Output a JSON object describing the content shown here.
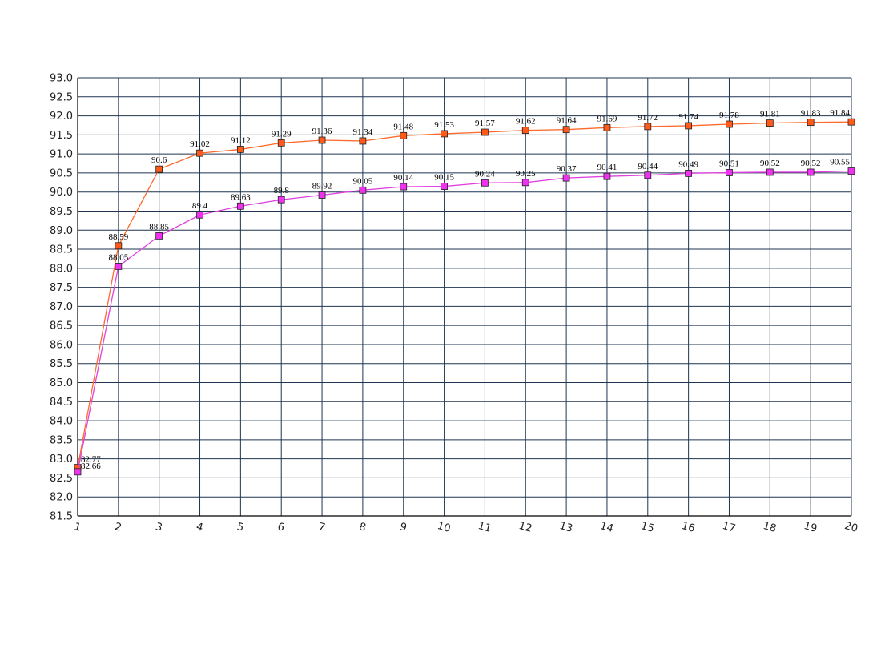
{
  "chart_data": {
    "type": "line",
    "title": "",
    "xlabel": "",
    "ylabel": "",
    "x": [
      1,
      2,
      3,
      4,
      5,
      6,
      7,
      8,
      9,
      10,
      11,
      12,
      13,
      14,
      15,
      16,
      17,
      18,
      19,
      20
    ],
    "xlim": [
      1,
      20
    ],
    "ylim": [
      81.5,
      93.0
    ],
    "ytick_step": 0.5,
    "grid": true,
    "legend": "none",
    "series": [
      {
        "color": "#ff6a2b",
        "marker_fill": "#ff5a1a",
        "values": [
          82.77,
          88.59,
          90.6,
          91.02,
          91.12,
          91.29,
          91.36,
          91.34,
          91.48,
          91.53,
          91.57,
          91.62,
          91.64,
          91.69,
          91.72,
          91.74,
          91.78,
          91.81,
          91.83,
          91.84
        ],
        "labels": [
          "82.77",
          "88.59",
          "90.6",
          "91.02",
          "91.12",
          "91.29",
          "91.36",
          "91.34",
          "91.48",
          "91.53",
          "91.57",
          "91.62",
          "91.64",
          "91.69",
          "91.72",
          "91.74",
          "91.78",
          "91.81",
          "91.83",
          "91.84"
        ]
      },
      {
        "color": "#e040e0",
        "marker_fill": "#ee33ee",
        "values": [
          82.66,
          88.05,
          88.85,
          89.4,
          89.63,
          89.8,
          89.92,
          90.05,
          90.14,
          90.15,
          90.24,
          90.25,
          90.37,
          90.41,
          90.44,
          90.49,
          90.51,
          90.52,
          90.52,
          90.55
        ],
        "labels": [
          "82.66",
          "88.05",
          "88.85",
          "89.4",
          "89.63",
          "89.8",
          "89.92",
          "90.05",
          "90.14",
          "90.15",
          "90.24",
          "90.25",
          "90.37",
          "90.41",
          "90.44",
          "90.49",
          "90.51",
          "90.52",
          "90.52",
          "90.55"
        ]
      }
    ],
    "colors": {
      "grid": "#1f3550",
      "axis": "#000000"
    }
  }
}
